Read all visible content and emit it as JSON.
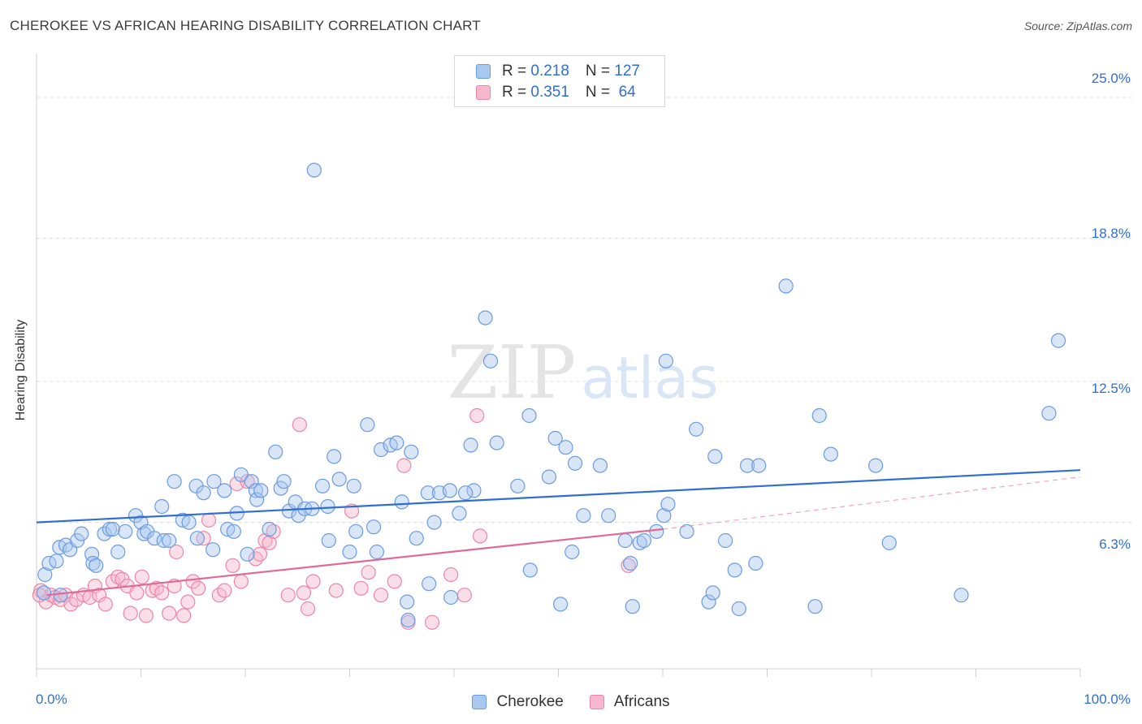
{
  "title": "CHEROKEE VS AFRICAN HEARING DISABILITY CORRELATION CHART",
  "source": "Source: ZipAtlas.com",
  "watermark": {
    "zip": "ZIP",
    "atlas": "atlas"
  },
  "colors": {
    "cherokee_fill": "#a9c8f0",
    "cherokee_stroke": "#6b9be0",
    "cherokee_line": "#2f6fd0",
    "africans_fill": "#f7b8cc",
    "africans_stroke": "#ec86a8",
    "africans_line": "#e06a96",
    "accent_text": "#2f6fd0",
    "grid": "#dcdcdc"
  },
  "legend": {
    "rows": [
      {
        "r_label": "R = ",
        "r_value": "0.218",
        "n_label": "N = ",
        "n_value": "127"
      },
      {
        "r_label": "R = ",
        "r_value": "0.351",
        "n_label": "N = ",
        "n_value": " 64"
      }
    ],
    "position": "top-center"
  },
  "bottom_legend": [
    "Cherokee",
    "Africans"
  ],
  "chart_data": {
    "type": "scatter",
    "title": "CHEROKEE VS AFRICAN HEARING DISABILITY CORRELATION CHART",
    "xlabel": "",
    "ylabel": "Hearing Disability",
    "xlim": [
      0,
      100
    ],
    "ylim": [
      0,
      26.5
    ],
    "x_tick_labels": [
      "0.0%",
      "100.0%"
    ],
    "y_ticks": [
      6.3,
      12.5,
      18.8,
      25.0
    ],
    "y_tick_labels": [
      "6.3%",
      "12.5%",
      "18.8%",
      "25.0%"
    ],
    "grid": true,
    "series": [
      {
        "name": "Cherokee",
        "trend": {
          "x": [
            0,
            100
          ],
          "y": [
            6.3,
            8.6
          ]
        },
        "points": [
          [
            0.7,
            3.2
          ],
          [
            0.8,
            4.0
          ],
          [
            1.2,
            4.5
          ],
          [
            1.9,
            4.6
          ],
          [
            2.2,
            5.2
          ],
          [
            2.8,
            5.3
          ],
          [
            2.3,
            3.1
          ],
          [
            3.2,
            5.1
          ],
          [
            3.9,
            5.5
          ],
          [
            4.3,
            5.8
          ],
          [
            5.3,
            4.9
          ],
          [
            5.4,
            4.5
          ],
          [
            5.7,
            4.4
          ],
          [
            6.5,
            5.8
          ],
          [
            7.0,
            6.0
          ],
          [
            7.3,
            6.0
          ],
          [
            7.8,
            5.0
          ],
          [
            8.5,
            5.9
          ],
          [
            9.5,
            6.6
          ],
          [
            10.0,
            6.3
          ],
          [
            10.3,
            5.8
          ],
          [
            10.6,
            5.9
          ],
          [
            11.3,
            5.6
          ],
          [
            12.0,
            7.0
          ],
          [
            12.2,
            5.5
          ],
          [
            12.7,
            5.5
          ],
          [
            13.2,
            8.1
          ],
          [
            14.0,
            6.4
          ],
          [
            14.6,
            6.3
          ],
          [
            15.3,
            7.9
          ],
          [
            15.4,
            5.6
          ],
          [
            16.0,
            7.6
          ],
          [
            17.0,
            8.1
          ],
          [
            16.9,
            5.1
          ],
          [
            18.0,
            7.7
          ],
          [
            18.3,
            6.0
          ],
          [
            18.9,
            5.9
          ],
          [
            19.2,
            6.7
          ],
          [
            19.6,
            8.4
          ],
          [
            20.2,
            4.9
          ],
          [
            20.6,
            8.1
          ],
          [
            21.0,
            7.7
          ],
          [
            21.1,
            7.3
          ],
          [
            21.5,
            7.7
          ],
          [
            22.3,
            6.0
          ],
          [
            22.9,
            9.4
          ],
          [
            23.4,
            7.8
          ],
          [
            23.7,
            8.1
          ],
          [
            24.2,
            6.8
          ],
          [
            24.8,
            7.2
          ],
          [
            25.1,
            6.6
          ],
          [
            25.7,
            6.9
          ],
          [
            26.4,
            6.9
          ],
          [
            26.6,
            21.8
          ],
          [
            27.4,
            7.9
          ],
          [
            27.9,
            7.0
          ],
          [
            28.0,
            5.5
          ],
          [
            28.5,
            9.2
          ],
          [
            29.0,
            8.2
          ],
          [
            30.0,
            5.0
          ],
          [
            30.4,
            7.9
          ],
          [
            30.6,
            5.9
          ],
          [
            31.7,
            10.6
          ],
          [
            32.3,
            6.1
          ],
          [
            32.6,
            5.0
          ],
          [
            33.0,
            9.5
          ],
          [
            33.9,
            9.7
          ],
          [
            34.5,
            9.8
          ],
          [
            35.0,
            7.2
          ],
          [
            35.5,
            2.8
          ],
          [
            35.9,
            9.4
          ],
          [
            36.4,
            5.6
          ],
          [
            37.5,
            7.6
          ],
          [
            37.6,
            3.6
          ],
          [
            38.1,
            6.3
          ],
          [
            38.6,
            7.6
          ],
          [
            39.6,
            7.7
          ],
          [
            40.5,
            6.7
          ],
          [
            41.6,
            9.7
          ],
          [
            41.9,
            7.7
          ],
          [
            43.0,
            15.3
          ],
          [
            43.5,
            13.4
          ],
          [
            44.1,
            9.8
          ],
          [
            46.1,
            7.9
          ],
          [
            47.2,
            11.0
          ],
          [
            47.3,
            4.2
          ],
          [
            49.1,
            8.3
          ],
          [
            49.7,
            10.0
          ],
          [
            50.2,
            2.7
          ],
          [
            50.7,
            9.6
          ],
          [
            51.3,
            5.0
          ],
          [
            51.6,
            8.9
          ],
          [
            52.4,
            6.6
          ],
          [
            54.0,
            8.8
          ],
          [
            54.8,
            6.6
          ],
          [
            56.4,
            5.5
          ],
          [
            56.9,
            4.5
          ],
          [
            57.1,
            2.6
          ],
          [
            57.8,
            5.4
          ],
          [
            58.2,
            5.5
          ],
          [
            59.4,
            5.9
          ],
          [
            60.1,
            6.6
          ],
          [
            60.3,
            13.4
          ],
          [
            60.5,
            7.1
          ],
          [
            62.3,
            5.9
          ],
          [
            63.2,
            10.4
          ],
          [
            64.4,
            2.8
          ],
          [
            64.8,
            3.2
          ],
          [
            65.0,
            9.2
          ],
          [
            66.0,
            5.5
          ],
          [
            66.9,
            4.2
          ],
          [
            67.3,
            2.5
          ],
          [
            68.1,
            8.8
          ],
          [
            68.9,
            4.5
          ],
          [
            69.2,
            8.8
          ],
          [
            71.8,
            16.7
          ],
          [
            74.6,
            2.6
          ],
          [
            75.0,
            11.0
          ],
          [
            76.1,
            9.3
          ],
          [
            80.4,
            8.8
          ],
          [
            81.7,
            5.4
          ],
          [
            88.6,
            3.1
          ],
          [
            97.0,
            11.1
          ],
          [
            97.9,
            14.3
          ],
          [
            35.6,
            2.0
          ],
          [
            41.1,
            7.6
          ],
          [
            39.7,
            3.0
          ]
        ]
      },
      {
        "name": "Africans",
        "trend": {
          "x": [
            1,
            60
          ],
          "y": [
            3.1,
            6.0
          ]
        },
        "trend_dashed": {
          "x": [
            60,
            100
          ],
          "y": [
            6.0,
            8.3
          ]
        },
        "points": [
          [
            0.4,
            3.3
          ],
          [
            0.9,
            2.8
          ],
          [
            1.4,
            3.1
          ],
          [
            1.8,
            3.0
          ],
          [
            2.3,
            2.9
          ],
          [
            2.8,
            3.1
          ],
          [
            3.3,
            2.7
          ],
          [
            3.8,
            2.9
          ],
          [
            4.5,
            3.1
          ],
          [
            5.1,
            3.0
          ],
          [
            5.6,
            3.5
          ],
          [
            6.0,
            3.1
          ],
          [
            6.6,
            2.7
          ],
          [
            7.3,
            3.7
          ],
          [
            7.8,
            3.9
          ],
          [
            8.2,
            3.8
          ],
          [
            8.7,
            3.5
          ],
          [
            9.0,
            2.3
          ],
          [
            9.6,
            3.2
          ],
          [
            10.1,
            3.9
          ],
          [
            10.5,
            2.2
          ],
          [
            11.1,
            3.3
          ],
          [
            11.5,
            3.4
          ],
          [
            12.0,
            3.2
          ],
          [
            12.7,
            2.3
          ],
          [
            13.2,
            3.5
          ],
          [
            13.4,
            5.0
          ],
          [
            14.1,
            2.2
          ],
          [
            14.5,
            2.8
          ],
          [
            15.0,
            3.7
          ],
          [
            15.5,
            3.4
          ],
          [
            16.0,
            5.6
          ],
          [
            16.5,
            6.4
          ],
          [
            17.5,
            3.1
          ],
          [
            18.0,
            3.3
          ],
          [
            18.8,
            4.4
          ],
          [
            19.2,
            8.0
          ],
          [
            19.6,
            3.7
          ],
          [
            20.2,
            8.1
          ],
          [
            21.0,
            4.7
          ],
          [
            21.4,
            4.9
          ],
          [
            21.9,
            5.5
          ],
          [
            22.3,
            5.4
          ],
          [
            22.7,
            5.9
          ],
          [
            24.1,
            3.1
          ],
          [
            25.2,
            10.6
          ],
          [
            25.6,
            3.2
          ],
          [
            26.0,
            2.5
          ],
          [
            26.5,
            3.7
          ],
          [
            28.7,
            3.3
          ],
          [
            30.2,
            6.8
          ],
          [
            31.1,
            3.4
          ],
          [
            31.8,
            4.1
          ],
          [
            33.0,
            3.1
          ],
          [
            34.3,
            3.7
          ],
          [
            35.2,
            8.8
          ],
          [
            35.6,
            1.9
          ],
          [
            37.9,
            1.9
          ],
          [
            39.7,
            4.0
          ],
          [
            41.0,
            3.1
          ],
          [
            42.2,
            11.0
          ],
          [
            42.5,
            5.7
          ],
          [
            56.7,
            4.4
          ],
          [
            0.3,
            3.1
          ]
        ]
      }
    ]
  }
}
